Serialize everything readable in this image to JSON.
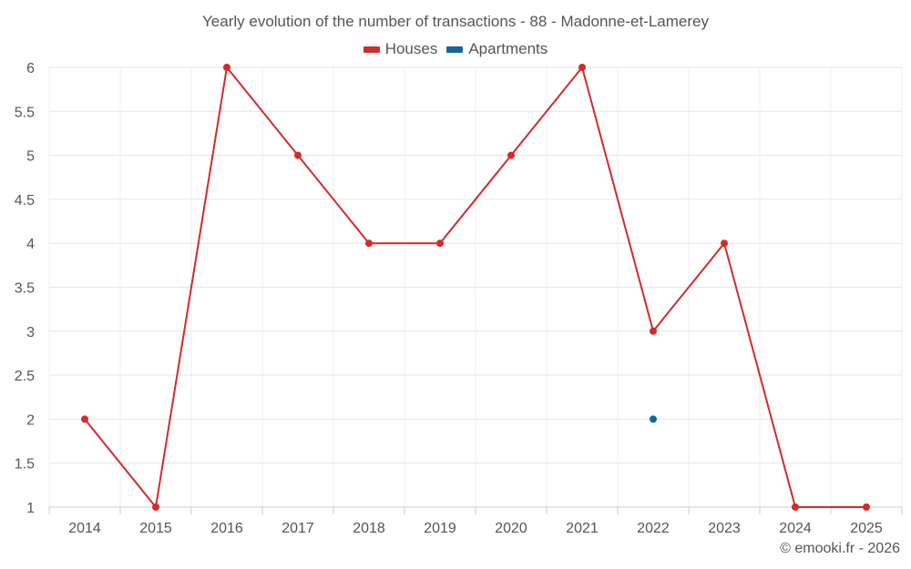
{
  "chart_data": {
    "type": "line",
    "title": "Yearly evolution of the number of transactions - 88 - Madonne-et-Lamerey",
    "xlabel": "",
    "ylabel": "",
    "categories": [
      "2014",
      "2015",
      "2016",
      "2017",
      "2018",
      "2019",
      "2020",
      "2021",
      "2022",
      "2023",
      "2024",
      "2025"
    ],
    "ylim": [
      1,
      6
    ],
    "yticks": [
      "1",
      "1.5",
      "2",
      "2.5",
      "3",
      "3.5",
      "4",
      "4.5",
      "5",
      "5.5",
      "6"
    ],
    "grid": true,
    "legend": "top-center",
    "series": [
      {
        "name": "Houses",
        "color": "#d42a2a",
        "values": [
          2,
          1,
          6,
          5,
          4,
          4,
          5,
          6,
          3,
          4,
          1,
          1
        ]
      },
      {
        "name": "Apartments",
        "color": "#10669e",
        "values": [
          null,
          null,
          null,
          null,
          null,
          null,
          null,
          null,
          2,
          null,
          null,
          null
        ]
      }
    ]
  },
  "footer": {
    "credit": "© emooki.fr - 2026"
  }
}
